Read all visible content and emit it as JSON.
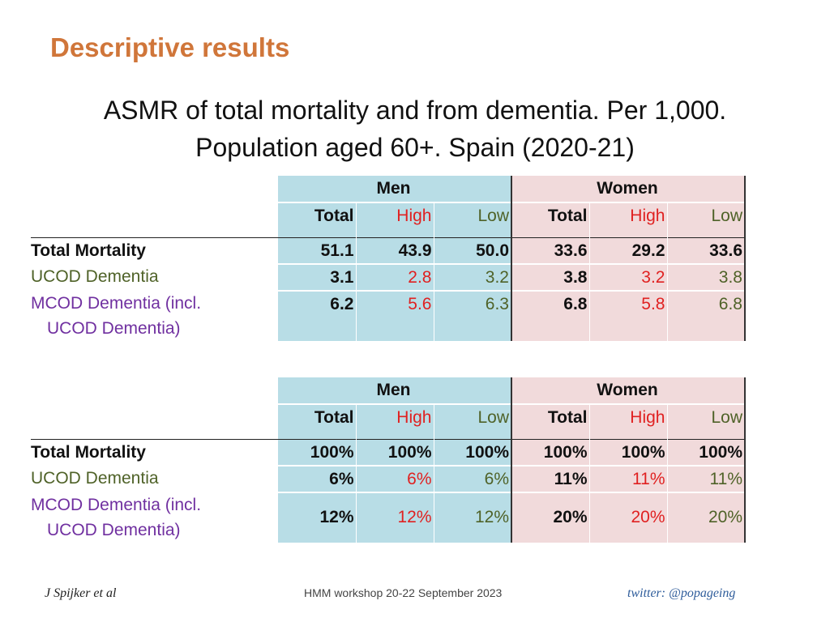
{
  "slide_title": "Descriptive results",
  "subtitle": {
    "line1": "ASMR of total mortality and from dementia. Per 1,000.",
    "line2": "Population aged 60+. Spain (2020-21)"
  },
  "header": {
    "men": "Men",
    "women": "Women",
    "cols": [
      "Total",
      "High",
      "Low",
      "Total",
      "High",
      "Low"
    ]
  },
  "row_labels": {
    "total": "Total Mortality",
    "ucod": "UCOD Dementia",
    "mcod_1": "MCOD Dementia (incl.",
    "mcod_2": "UCOD Dementia)"
  },
  "table1": {
    "total": [
      "51.1",
      "43.9",
      "50.0",
      "33.6",
      "29.2",
      "33.6"
    ],
    "ucod": [
      "3.1",
      "2.8",
      "3.2",
      "3.8",
      "3.2",
      "3.8"
    ],
    "mcod": [
      "6.2",
      "5.6",
      "6.3",
      "6.8",
      "5.8",
      "6.8"
    ]
  },
  "table2": {
    "total": [
      "100%",
      "100%",
      "100%",
      "100%",
      "100%",
      "100%"
    ],
    "ucod": [
      "6%",
      "6%",
      "6%",
      "11%",
      "11%",
      "11%"
    ],
    "mcod": [
      "12%",
      "12%",
      "12%",
      "20%",
      "20%",
      "20%"
    ]
  },
  "footer": {
    "author": "J Spijker et al",
    "event": "HMM workshop 20-22 September 2023",
    "twitter": "twitter: @popageing"
  }
}
